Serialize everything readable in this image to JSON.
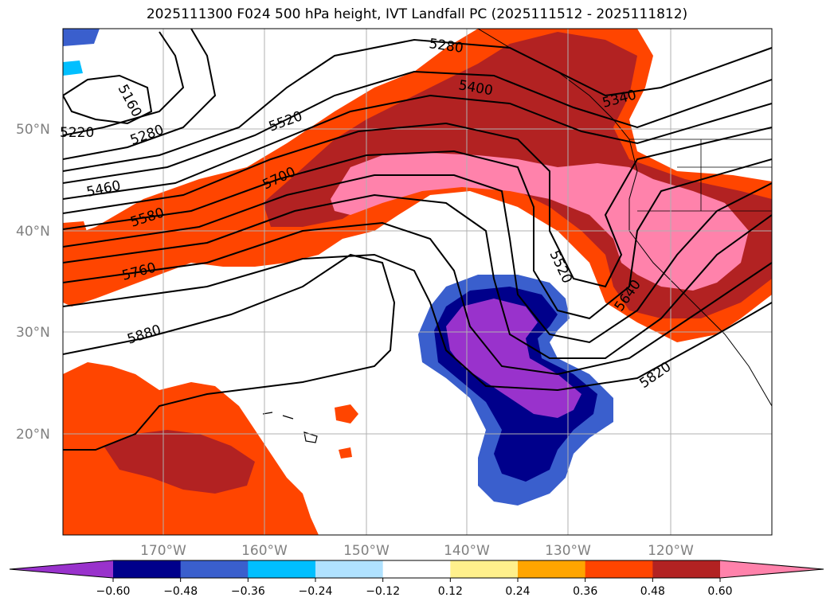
{
  "title": "2025111300 F024 500 hPa height, IVT Landfall PC (2025111512 - 2025111812)",
  "map": {
    "lat_labels": [
      "50°N",
      "40°N",
      "30°N",
      "20°N"
    ],
    "lon_labels": [
      "170°W",
      "160°W",
      "150°W",
      "140°W",
      "130°W",
      "120°W"
    ],
    "height_contour_labels": [
      "5160",
      "5220",
      "5280",
      "5460",
      "5580",
      "5760",
      "5880",
      "5520",
      "5700",
      "5280",
      "5400",
      "5340",
      "5520",
      "5640",
      "5820"
    ]
  },
  "colorbar": {
    "colors": [
      "#9932cc",
      "#00008b",
      "#3a5fcd",
      "#00bfff",
      "#b0e2ff",
      "#ffffff",
      "#fff08c",
      "#ffa500",
      "#ff4500",
      "#b22222",
      "#ff82ab"
    ],
    "tick_labels": [
      "−0.60",
      "−0.48",
      "−0.36",
      "−0.24",
      "−0.12",
      "0.12",
      "0.24",
      "0.36",
      "0.48",
      "0.60"
    ]
  }
}
